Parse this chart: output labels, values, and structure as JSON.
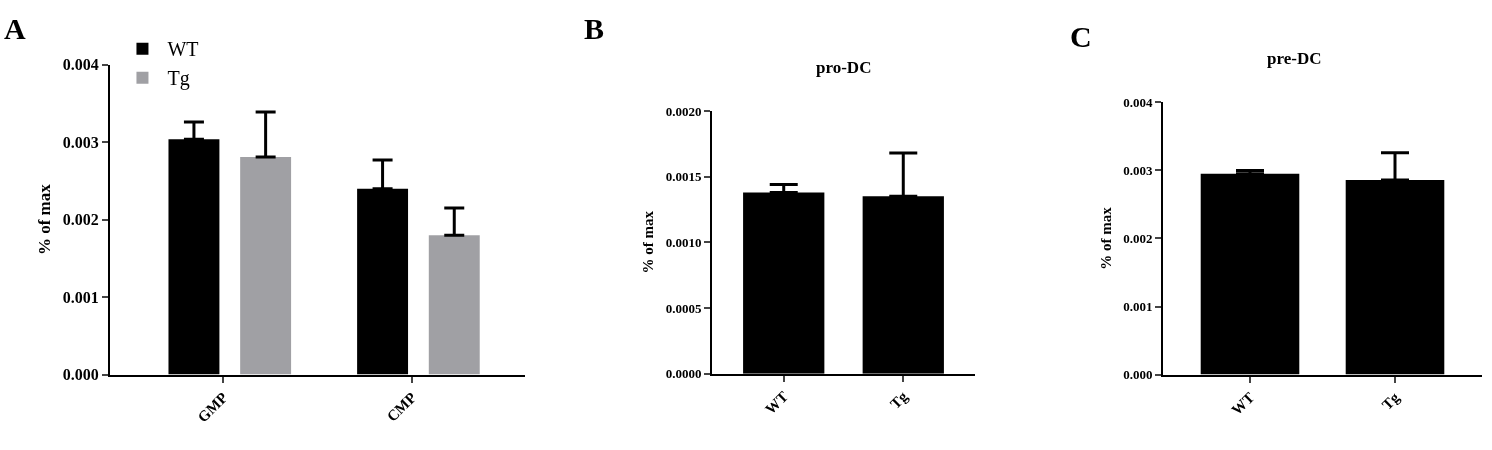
{
  "chart_data": [
    {
      "type": "bar",
      "annotations": [
        "A"
      ],
      "ylabel": "% of max",
      "categories": [
        "GMP",
        "CMP"
      ],
      "ylim": [
        0,
        0.004
      ],
      "yticks": [
        {
          "value": 0,
          "label": "0.000"
        },
        0.001,
        0.002,
        0.003,
        0.004
      ],
      "legend": "top left",
      "series": [
        {
          "name": "WT",
          "color": "#000000",
          "values": [
            0.00304,
            0.0024
          ],
          "errors": [
            [
              0.00304,
              0.00326
            ],
            [
              0.0024,
              0.00277
            ]
          ]
        },
        {
          "name": "Tg",
          "color": "#a0a0a4",
          "values": [
            0.00281,
            0.0018
          ],
          "errors": [
            [
              0.00281,
              0.00339
            ],
            [
              0.0018,
              0.00215
            ]
          ]
        }
      ]
    },
    {
      "type": "bar",
      "annotations": [
        "B"
      ],
      "title": "pro-DC",
      "ylabel": "% of max",
      "categories": [
        "WT",
        "Tg"
      ],
      "ylim": [
        0,
        0.002
      ],
      "yticks": [
        {
          "value": 0,
          "label": "0.0000"
        },
        0.0005,
        {
          "value": 0.001,
          "label": "0.0010"
        },
        0.0015,
        {
          "value": 0.002,
          "label": "0.0020"
        }
      ],
      "legend": false,
      "series": [
        {
          "color": "#000000",
          "values": [
            0.00138,
            0.00135
          ],
          "errors": [
            [
              0.00138,
              0.00144
            ],
            [
              0.00135,
              0.00168
            ]
          ]
        }
      ]
    },
    {
      "type": "bar",
      "annotations": [
        "C"
      ],
      "title": "pre-DC",
      "ylabel": "% of max",
      "categories": [
        "WT",
        "Tg"
      ],
      "ylim": [
        0,
        0.004
      ],
      "yticks": [
        {
          "value": 0,
          "label": "0.000"
        },
        0.001,
        0.002,
        0.003,
        0.004
      ],
      "legend": false,
      "series": [
        {
          "color": "#000000",
          "values": [
            0.00295,
            0.00286
          ],
          "errors": [
            [
              0.00295,
              0.003
            ],
            [
              0.00286,
              0.00326
            ]
          ]
        }
      ]
    }
  ]
}
